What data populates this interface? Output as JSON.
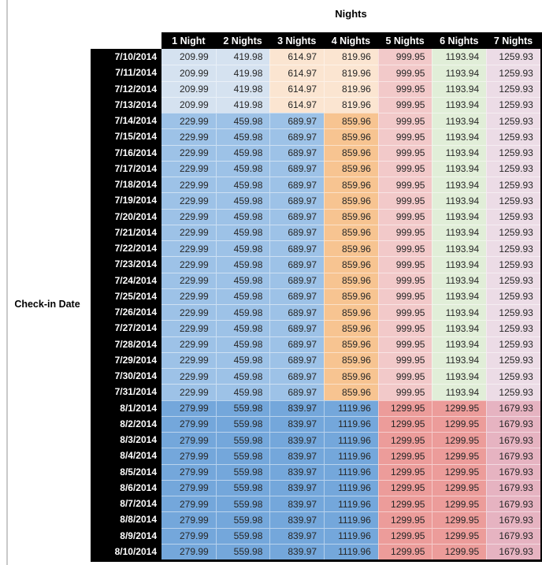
{
  "chart_data": {
    "type": "table",
    "title": "Nights",
    "row_axis_label": "Check-in Date",
    "columns": [
      "1 Night",
      "2 Nights",
      "3 Nights",
      "4 Nights",
      "5 Nights",
      "6 Nights",
      "7 Nights"
    ],
    "band_values": {
      "a": [
        "209.99",
        "419.98",
        "614.97",
        "819.96",
        "999.95",
        "1193.94",
        "1259.93"
      ],
      "b": [
        "229.99",
        "459.98",
        "689.97",
        "859.96",
        "999.95",
        "1193.94",
        "1259.93"
      ],
      "c": [
        "279.99",
        "559.98",
        "839.97",
        "1119.96",
        "1299.95",
        "1299.95",
        "1679.93"
      ]
    },
    "band_cell_colors": {
      "a": [
        "#d5e2f0",
        "#d5e2f0",
        "#fbe5d1",
        "#fbe5d1",
        "#f2c9c9",
        "#e1eed8",
        "#ecdce6"
      ],
      "b": [
        "#9dc2e7",
        "#9dc2e7",
        "#9dc2e7",
        "#f7c491",
        "#f2c9c9",
        "#e1eed8",
        "#ecdce6"
      ],
      "c": [
        "#74a7db",
        "#74a7db",
        "#74a7db",
        "#74a7db",
        "#ec9c9a",
        "#ec9c9a",
        "#e6b3c1"
      ]
    },
    "rows": [
      {
        "date": "7/10/2014",
        "band": "a"
      },
      {
        "date": "7/11/2014",
        "band": "a"
      },
      {
        "date": "7/12/2014",
        "band": "a"
      },
      {
        "date": "7/13/2014",
        "band": "a"
      },
      {
        "date": "7/14/2014",
        "band": "b"
      },
      {
        "date": "7/15/2014",
        "band": "b"
      },
      {
        "date": "7/16/2014",
        "band": "b"
      },
      {
        "date": "7/17/2014",
        "band": "b"
      },
      {
        "date": "7/18/2014",
        "band": "b"
      },
      {
        "date": "7/19/2014",
        "band": "b"
      },
      {
        "date": "7/20/2014",
        "band": "b"
      },
      {
        "date": "7/21/2014",
        "band": "b"
      },
      {
        "date": "7/22/2014",
        "band": "b"
      },
      {
        "date": "7/23/2014",
        "band": "b"
      },
      {
        "date": "7/24/2014",
        "band": "b"
      },
      {
        "date": "7/25/2014",
        "band": "b"
      },
      {
        "date": "7/26/2014",
        "band": "b"
      },
      {
        "date": "7/27/2014",
        "band": "b"
      },
      {
        "date": "7/28/2014",
        "band": "b"
      },
      {
        "date": "7/29/2014",
        "band": "b"
      },
      {
        "date": "7/30/2014",
        "band": "b"
      },
      {
        "date": "7/31/2014",
        "band": "b"
      },
      {
        "date": "8/1/2014",
        "band": "c"
      },
      {
        "date": "8/2/2014",
        "band": "c"
      },
      {
        "date": "8/3/2014",
        "band": "c"
      },
      {
        "date": "8/4/2014",
        "band": "c"
      },
      {
        "date": "8/5/2014",
        "band": "c"
      },
      {
        "date": "8/6/2014",
        "band": "c"
      },
      {
        "date": "8/7/2014",
        "band": "c"
      },
      {
        "date": "8/8/2014",
        "band": "c"
      },
      {
        "date": "8/9/2014",
        "band": "c"
      },
      {
        "date": "8/10/2014",
        "band": "c"
      }
    ],
    "styles": {
      "header_bg": "#000000",
      "header_fg": "#ffffff",
      "date_col_bg": "#000000",
      "date_col_fg": "#ffffff",
      "value_fg": "#262626",
      "left_gridline": "#c9c9c9"
    }
  }
}
